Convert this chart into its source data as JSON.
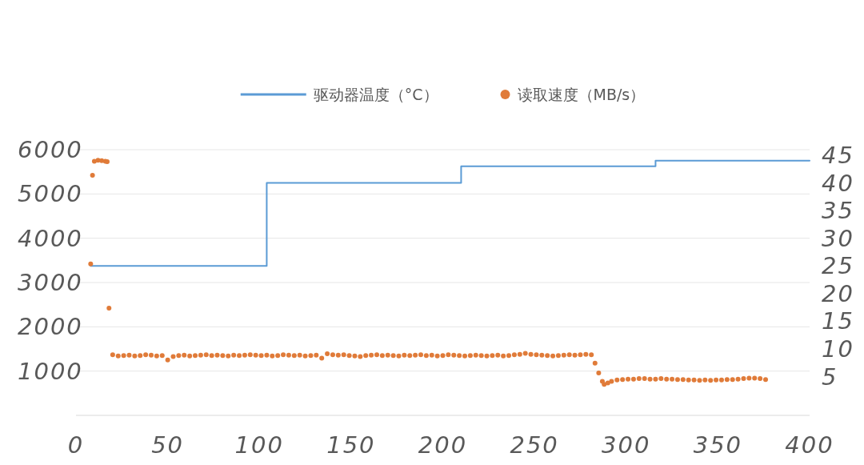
{
  "chart_data": {
    "type": "scatter",
    "xlim": [
      0,
      400
    ],
    "xticks": [
      0,
      50,
      100,
      150,
      200,
      250,
      300,
      350,
      400
    ],
    "ylim": [
      0,
      6000
    ],
    "yticks": [
      1000,
      2000,
      3000,
      4000,
      5000,
      6000
    ],
    "y2lim": [
      -2,
      46
    ],
    "y2ticks": [
      5,
      10,
      15,
      20,
      25,
      30,
      35,
      40,
      45
    ],
    "grid": "y",
    "legend": "top",
    "series": [
      {
        "name": "驱动器温度（°C）",
        "type": "step",
        "axis": "y2",
        "color": "#5b9bd5",
        "x": [
          8,
          104,
          210,
          316,
          400
        ],
        "values": [
          25,
          40,
          43,
          44,
          44
        ]
      },
      {
        "name": "读取速度（MB/s）",
        "color": "#e07b39",
        "marker": "circle",
        "x": [
          8,
          9,
          10,
          12,
          14,
          16,
          17,
          18,
          20,
          23,
          26,
          29,
          32,
          35,
          38,
          41,
          44,
          47,
          50,
          53,
          56,
          59,
          62,
          65,
          68,
          71,
          74,
          77,
          80,
          83,
          86,
          89,
          92,
          95,
          98,
          101,
          104,
          107,
          110,
          113,
          116,
          119,
          122,
          125,
          128,
          131,
          134,
          137,
          140,
          143,
          146,
          149,
          152,
          155,
          158,
          161,
          164,
          167,
          170,
          173,
          176,
          179,
          182,
          185,
          188,
          191,
          194,
          197,
          200,
          203,
          206,
          209,
          212,
          215,
          218,
          221,
          224,
          227,
          230,
          233,
          236,
          239,
          242,
          245,
          248,
          251,
          254,
          257,
          260,
          263,
          266,
          269,
          272,
          275,
          278,
          281,
          283,
          285,
          287,
          288,
          290,
          292,
          295,
          298,
          301,
          304,
          307,
          310,
          313,
          316,
          319,
          322,
          325,
          328,
          331,
          334,
          337,
          340,
          343,
          346,
          349,
          352,
          355,
          358,
          361,
          364,
          367,
          370,
          373,
          376
        ],
        "values": [
          3420,
          5420,
          5740,
          5760,
          5750,
          5740,
          5730,
          2420,
          1370,
          1340,
          1350,
          1360,
          1340,
          1350,
          1370,
          1360,
          1340,
          1350,
          1250,
          1330,
          1350,
          1360,
          1340,
          1350,
          1360,
          1370,
          1350,
          1360,
          1350,
          1340,
          1360,
          1350,
          1360,
          1370,
          1360,
          1350,
          1360,
          1340,
          1350,
          1370,
          1360,
          1350,
          1360,
          1340,
          1350,
          1360,
          1290,
          1390,
          1370,
          1360,
          1370,
          1350,
          1340,
          1330,
          1350,
          1360,
          1370,
          1350,
          1360,
          1350,
          1340,
          1360,
          1350,
          1360,
          1370,
          1350,
          1360,
          1340,
          1350,
          1370,
          1360,
          1350,
          1340,
          1350,
          1360,
          1350,
          1340,
          1350,
          1360,
          1340,
          1350,
          1370,
          1380,
          1400,
          1380,
          1370,
          1360,
          1350,
          1340,
          1350,
          1360,
          1370,
          1360,
          1370,
          1380,
          1370,
          1180,
          960,
          770,
          700,
          730,
          770,
          800,
          810,
          820,
          820,
          830,
          830,
          820,
          820,
          830,
          820,
          820,
          810,
          810,
          800,
          800,
          790,
          800,
          790,
          800,
          800,
          810,
          810,
          820,
          830,
          840,
          840,
          830,
          810
        ]
      }
    ]
  }
}
